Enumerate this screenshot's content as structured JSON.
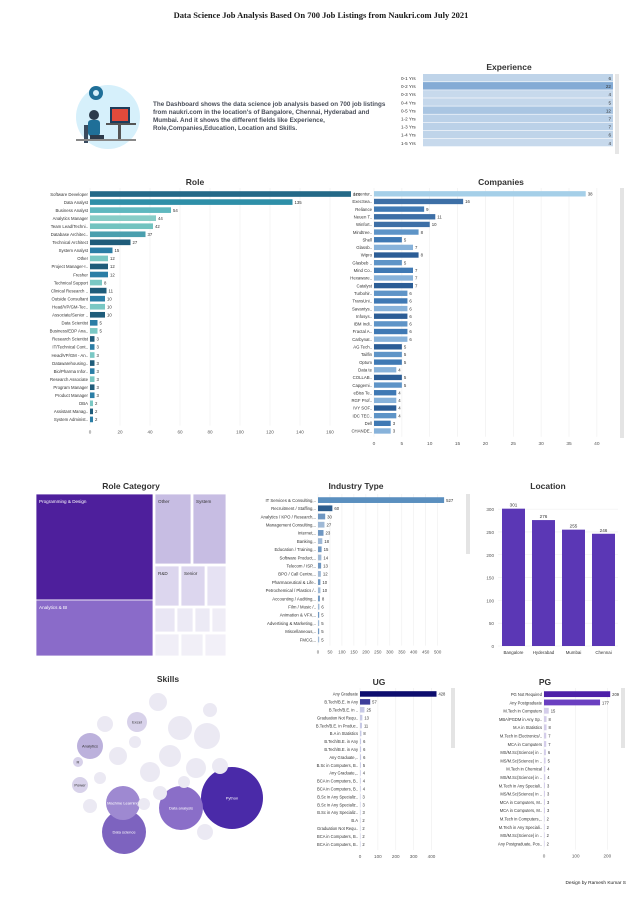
{
  "page": {
    "title": "Data Science Job Analysis Based On 700 Job Listings from Naukri.com July 2021",
    "intro": "The Dashboard shows the data science job analysis based on 700 job listings from naukri.com in the location's of Bangalore, Chennai, Hyderabad and Mumbai. And it shows the different fields like Experience, Role,Companies,Education, Location and Skills.",
    "footer": "Design by Ramesh Kumar S",
    "colors": {
      "role": "#2c7fa3",
      "company": "#6fa6d0",
      "industry": "#5a8fbf",
      "location": "#5b37b5",
      "ug": "#0d0d6e",
      "pg": "#4d1fa8",
      "experience": "#a7c4e0"
    }
  },
  "chart_data": [
    {
      "type": "table",
      "id": "experience",
      "title": "Experience",
      "rows": [
        {
          "label": "0-1 Yrs",
          "value": 6
        },
        {
          "label": "0-2 Yrs",
          "value": 22
        },
        {
          "label": "0-3 Yrs",
          "value": 4
        },
        {
          "label": "0-4 Yrs",
          "value": 5
        },
        {
          "label": "0-5 Yrs",
          "value": 12
        },
        {
          "label": "1-2 Yrs",
          "value": 7
        },
        {
          "label": "1-3 Yrs",
          "value": 7
        },
        {
          "label": "1-4 Yrs",
          "value": 6
        },
        {
          "label": "1-5 Yrs",
          "value": 4
        }
      ]
    },
    {
      "type": "bar",
      "id": "role",
      "title": "Role",
      "orientation": "horizontal",
      "xlim": [
        0,
        180
      ],
      "xticks": [
        0,
        20,
        40,
        60,
        80,
        100,
        120,
        140,
        160
      ],
      "categories": [
        "Software Developer",
        "Data Analyst",
        "Business Analyst",
        "Analytics Manager",
        "Team Lead/Techni..",
        "Database Architec..",
        "Technical Architect",
        "System Analyst",
        "Other",
        "Project Manager-I..",
        "Fresher",
        "Technical Support",
        "Clinical Research ..",
        "Outside Consultant",
        "Head/VP/GM-Tec..",
        "Associate/Senior ..",
        "Data Scientist",
        "Business/EDP Ana..",
        "Research Scientist",
        "IT/Technical Cont..",
        "Head/VP/GM - An..",
        "Datawarehousing..",
        "Bio/Pharma Infor..",
        "Research Associate",
        "Program Manager",
        "Product Manager",
        "DBA",
        "Assistant Manag..",
        "System Administ.."
      ],
      "values": [
        174,
        135,
        54,
        44,
        42,
        37,
        27,
        15,
        12,
        12,
        12,
        8,
        11,
        10,
        10,
        10,
        5,
        5,
        3,
        3,
        3,
        3,
        3,
        3,
        3,
        3,
        2,
        2,
        2
      ]
    },
    {
      "type": "bar",
      "id": "companies",
      "title": "Companies",
      "orientation": "horizontal",
      "xlim": [
        0,
        42
      ],
      "xticks": [
        0,
        5,
        10,
        15,
        20,
        25,
        30,
        35,
        40
      ],
      "categories": [
        "Accentur..",
        "ExecSea..",
        "Reliance",
        "Neuen T..",
        "Winfort..",
        "Mindtree..",
        "Shell",
        "Glassb..",
        "Wipro",
        "Glasbeb ..",
        "Mind Co..",
        "Hexaware..",
        "Catalyst",
        "Turbohir..",
        "TransUni..",
        "Savantys..",
        "Infosys..",
        "IBM Indi..",
        "Fractal A..",
        "Carbynat..",
        "AG Tech..",
        "Tailfin",
        "Optum",
        "Data te",
        "COLLAB..",
        "Capgemi..",
        "eBiss Te..",
        "RGF Prof..",
        "IVY SOF..",
        "IDC TEC..",
        "Dell",
        "CHANDE.."
      ],
      "values": [
        38,
        16,
        9,
        11,
        10,
        8,
        5,
        7,
        8,
        5,
        7,
        7,
        7,
        6,
        6,
        6,
        6,
        6,
        6,
        6,
        5,
        5,
        5,
        4,
        5,
        5,
        4,
        4,
        4,
        4,
        3,
        3
      ]
    },
    {
      "type": "heatmap",
      "id": "role_category",
      "title": "Role Category",
      "items": [
        {
          "label": "Programming & Design",
          "value": 300
        },
        {
          "label": "Analytics & BI",
          "value": 150
        },
        {
          "label": "Other",
          "value": 40
        },
        {
          "label": "System",
          "value": 40
        },
        {
          "label": "R&D",
          "value": 25
        },
        {
          "label": "Senior",
          "value": 25
        },
        {
          "label": "",
          "value": 12
        },
        {
          "label": "",
          "value": 12
        },
        {
          "label": "",
          "value": 8
        },
        {
          "label": "",
          "value": 8
        },
        {
          "label": "",
          "value": 6
        },
        {
          "label": "",
          "value": 6
        },
        {
          "label": "",
          "value": 4
        },
        {
          "label": "",
          "value": 4
        }
      ]
    },
    {
      "type": "bar",
      "id": "industry",
      "title": "Industry Type",
      "orientation": "horizontal",
      "xlim": [
        0,
        560
      ],
      "xticks": [
        0,
        50,
        100,
        150,
        200,
        250,
        300,
        350,
        400,
        450,
        500
      ],
      "categories": [
        "IT Services & Consulting,..",
        "Recruitment / Staffing,..",
        "Analytics / KPO / Research,..",
        "Management Consulting,..",
        "Internet,..",
        "Banking,..",
        "Education / Training,..",
        "Software Product,..",
        "Telecom / ISP,..",
        "BPO / Call Centre,..",
        "Pharmaceutical & Life..",
        "Petrochemical / Plastics /..",
        "Accounting / Auditing,..",
        "Film / Music /..",
        "Animation & VFX,..",
        "Advertising & Marketing,..",
        "Miscellaneous,..",
        "FMCG,.."
      ],
      "values": [
        527,
        60,
        30,
        27,
        23,
        18,
        15,
        14,
        13,
        12,
        10,
        10,
        8,
        6,
        5,
        5,
        5,
        5
      ]
    },
    {
      "type": "bar",
      "id": "location",
      "title": "Location",
      "yticks": [
        0,
        50,
        100,
        150,
        200,
        250,
        300
      ],
      "ylim": [
        0,
        320
      ],
      "categories": [
        "Bangalore",
        "Hyderabad",
        "Mumbai",
        "Chennai"
      ],
      "values": [
        301,
        276,
        255,
        246
      ]
    },
    {
      "type": "scatter",
      "id": "skills",
      "title": "Skills",
      "items": [
        "Python",
        "Data science",
        "Data analysis",
        "Machine Learning",
        "Excel",
        "Analytics",
        "Power",
        "R",
        "",
        "",
        "",
        "",
        "",
        "",
        "",
        "",
        "",
        "",
        "",
        "",
        "",
        "",
        "",
        "",
        ""
      ]
    },
    {
      "type": "bar",
      "id": "ug",
      "title": "UG",
      "orientation": "horizontal",
      "xlim": [
        0,
        470
      ],
      "xticks": [
        0,
        100,
        200,
        300,
        400
      ],
      "categories": [
        "Any Graduate",
        "B.Tech/B.E. in Any",
        "B.Tech/B.E. in ..",
        "Graduation Not Requ..",
        "B.Tech/B.E. in Produc..",
        "B.A in Statistics",
        "B.Tech/B.E. in Any",
        "B.Tech/B.E. in Any",
        "Any Graduate,..",
        "B.Sc in Computers, B..",
        "Any Graduate,..",
        "BCA in Computers, B..",
        "BCA in Computers, B..",
        "B.Sc in Any Specializ..",
        "B.Sc in Any Specializ..",
        "B.Sc in Any Specializ..",
        "B.A",
        "Graduation Not Requ..",
        "BCA in Computers, B..",
        "BCA in Computers, B.."
      ],
      "values": [
        428,
        57,
        25,
        13,
        11,
        8,
        6,
        6,
        6,
        5,
        4,
        4,
        4,
        3,
        3,
        3,
        2,
        2,
        2,
        2
      ]
    },
    {
      "type": "bar",
      "id": "pg",
      "title": "PG",
      "orientation": "horizontal",
      "xlim": [
        0,
        240
      ],
      "xticks": [
        0,
        100,
        200
      ],
      "categories": [
        "PG Not Required",
        "Any Postgraduate",
        "M.Tech in Computers",
        "MBA/PGDM in Any Sp..",
        "M.A in Statistics",
        "M.Tech in Electronics/..",
        "MCA in Computers",
        "MS/M.Sc(Science) in ..",
        "MS/M.Sc(Science) in ..",
        "M.Tech in Chemical",
        "MS/M.Sc(Science) in ..",
        "M.Tech in Any Speciali..",
        "MS/M.Sc(Science) in ..",
        "MCA in Computers, M..",
        "MCA in Computers, M..",
        "M.Tech in Computers,..",
        "M.Tech in Any Speciali..",
        "MS/M.Sc(Science) in ..",
        "Any Postgraduate, Pos.."
      ],
      "values": [
        209,
        177,
        15,
        8,
        8,
        7,
        7,
        6,
        5,
        4,
        4,
        3,
        3,
        3,
        3,
        2,
        2,
        2,
        2
      ]
    }
  ]
}
